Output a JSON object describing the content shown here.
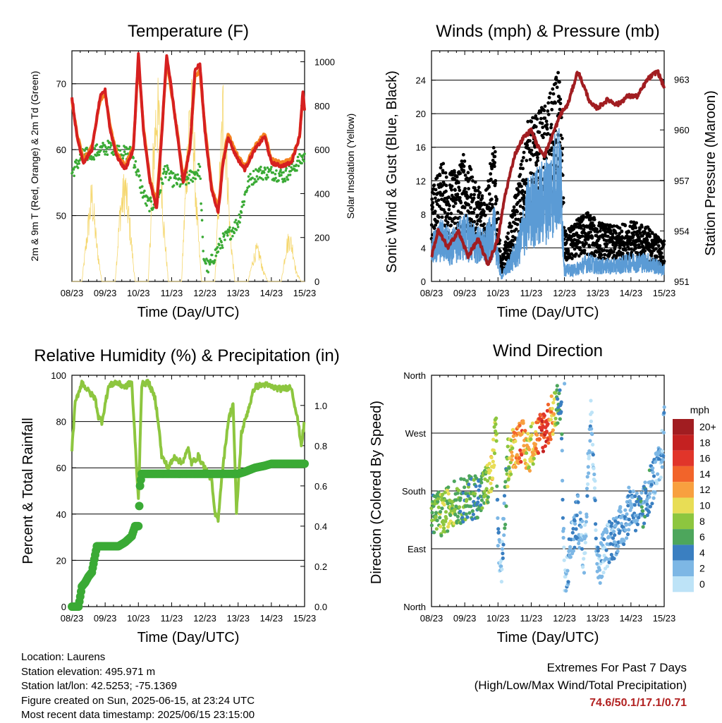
{
  "chart_data": [
    {
      "type": "line",
      "title": "Temperature (F)",
      "xlabel": "Time (Day/UTC)",
      "ylabel": "2m & 9m T (Red, Orange) & 2m Td (Green)",
      "ylabel_right": "Solar Insolation (Yellow)",
      "x_ticks": [
        "08/23",
        "09/23",
        "10/23",
        "11/23",
        "12/23",
        "13/23",
        "14/23",
        "15/23"
      ],
      "ylim": [
        40,
        75
      ],
      "y_ticks": [
        50,
        60,
        70
      ],
      "ylim_right": [
        0,
        1050
      ],
      "y_ticks_right": [
        0,
        200,
        400,
        600,
        800,
        1000
      ],
      "grid": "horizontal",
      "series": [
        {
          "name": "2m T",
          "color": "#d62020",
          "axis": "left",
          "x": [
            0,
            0.15,
            0.35,
            0.6,
            0.85,
            1.0,
            1.15,
            1.35,
            1.6,
            1.85,
            2.0,
            2.15,
            2.35,
            2.55,
            2.7,
            2.85,
            3.0,
            3.15,
            3.35,
            3.55,
            3.7,
            3.85,
            4.0,
            4.2,
            4.4,
            4.55,
            4.7,
            4.85,
            5.0,
            5.2,
            5.5,
            5.8,
            6.0,
            6.3,
            6.6,
            6.85,
            6.95,
            7.0
          ],
          "y": [
            68,
            62,
            58,
            60,
            68,
            69,
            63,
            59,
            57,
            60,
            74.5,
            63,
            55,
            51,
            62,
            74.5,
            69,
            63,
            55,
            60,
            72,
            73,
            63,
            54,
            50.5,
            58,
            62,
            60,
            58.5,
            57,
            60,
            62,
            58,
            57.5,
            58,
            62,
            69,
            66
          ]
        },
        {
          "name": "9m T",
          "color": "#f58220",
          "axis": "left",
          "x": [
            0,
            0.15,
            0.35,
            0.6,
            0.85,
            1.0,
            1.15,
            1.35,
            1.6,
            1.85,
            2.0,
            2.15,
            2.35,
            2.55,
            2.7,
            2.85,
            3.0,
            3.15,
            3.35,
            3.55,
            3.7,
            3.85,
            4.0,
            4.2,
            4.4,
            4.55,
            4.7,
            4.85,
            5.0,
            5.2,
            5.5,
            5.8,
            6.0,
            6.3,
            6.6,
            6.85,
            6.95,
            7.0
          ],
          "y": [
            67.5,
            62.5,
            58.5,
            60.5,
            67.5,
            68.5,
            63.5,
            59.5,
            57.5,
            60.5,
            73.5,
            63.5,
            55.5,
            52,
            62.5,
            73.5,
            68.5,
            63.5,
            55.5,
            60.5,
            71,
            72,
            63.5,
            54.5,
            51,
            58.5,
            62.5,
            60.5,
            59,
            57.5,
            60.5,
            62.5,
            58.5,
            58,
            58.5,
            62,
            68.5,
            66
          ]
        },
        {
          "name": "2m Td",
          "color": "#3aaa35",
          "axis": "left",
          "x": [
            0,
            0.3,
            0.6,
            0.9,
            1.2,
            1.5,
            1.8,
            2.0,
            2.1,
            2.25,
            2.4,
            2.6,
            2.8,
            3.0,
            3.3,
            3.6,
            3.85,
            3.95,
            4.1,
            4.3,
            4.5,
            4.7,
            4.85,
            5.0,
            5.3,
            5.6,
            6.0,
            6.4,
            6.8,
            7.0
          ],
          "y": [
            56.5,
            59,
            59.5,
            60,
            60.5,
            59.5,
            59.5,
            56,
            54,
            52,
            51.5,
            53,
            57,
            55.5,
            55,
            56,
            57,
            44,
            42,
            44,
            46,
            47,
            48,
            49,
            55,
            56.5,
            56.5,
            56,
            58,
            59
          ]
        },
        {
          "name": "Solar Insolation",
          "color": "#f5d76e",
          "axis": "right",
          "x": [
            0,
            0.3,
            0.45,
            0.6,
            0.75,
            0.9,
            1.3,
            1.45,
            1.6,
            1.75,
            1.9,
            2.3,
            2.45,
            2.55,
            2.65,
            2.75,
            2.9,
            3.3,
            3.45,
            3.55,
            3.65,
            3.75,
            3.9,
            4.3,
            4.45,
            4.55,
            4.65,
            4.75,
            4.9,
            5.3,
            5.45,
            5.55,
            5.65,
            5.75,
            5.9,
            6.3,
            6.45,
            6.55,
            6.65,
            6.75,
            6.9,
            7.0
          ],
          "y": [
            0,
            0,
            250,
            500,
            200,
            0,
            0,
            400,
            550,
            300,
            0,
            0,
            700,
            1000,
            850,
            350,
            0,
            0,
            650,
            1000,
            900,
            400,
            0,
            0,
            600,
            1000,
            750,
            300,
            0,
            0,
            120,
            180,
            150,
            60,
            0,
            0,
            200,
            250,
            180,
            50,
            0,
            0
          ]
        }
      ]
    },
    {
      "type": "scatter",
      "title": "Winds (mph) & Pressure (mb)",
      "xlabel": "Time (Day/UTC)",
      "ylabel": "Sonic Wind & Gust (Blue, Black)",
      "ylabel_right": "Station Pressure (Maroon)",
      "x_ticks": [
        "08/23",
        "09/23",
        "10/23",
        "11/23",
        "12/23",
        "13/23",
        "14/23",
        "15/23"
      ],
      "ylim": [
        0,
        27.5
      ],
      "y_ticks": [
        0,
        4,
        8,
        12,
        16,
        20,
        24
      ],
      "ylim_right": [
        951,
        964.7
      ],
      "y_ticks_right": [
        951,
        954,
        957,
        960,
        963
      ],
      "grid": "horizontal",
      "series": [
        {
          "name": "Sonic Wind",
          "color": "#5b9bd5",
          "x": [
            0,
            0.3,
            0.6,
            1.0,
            1.3,
            1.6,
            1.9,
            2.0,
            2.1,
            2.3,
            2.6,
            2.9,
            3.2,
            3.5,
            3.8,
            3.9,
            4.0,
            4.3,
            4.7,
            5.0,
            5.5,
            6.0,
            6.5,
            7.0
          ],
          "y": [
            4,
            5.5,
            4.5,
            6,
            5,
            4.5,
            6.5,
            3,
            0.5,
            2,
            4,
            9,
            10,
            11,
            14,
            12,
            1.5,
            1.5,
            2.5,
            2,
            2,
            2.5,
            2.5,
            1.5
          ]
        },
        {
          "name": "Sonic Gust",
          "color": "#000000",
          "x": [
            0,
            0.3,
            0.6,
            1.0,
            1.3,
            1.6,
            1.9,
            2.0,
            2.1,
            2.3,
            2.6,
            2.9,
            3.2,
            3.5,
            3.8,
            3.9,
            4.0,
            4.3,
            4.7,
            5.0,
            5.5,
            6.0,
            6.5,
            7.0
          ],
          "y": [
            9,
            12,
            11,
            13,
            10,
            9,
            14,
            7,
            2,
            5,
            10,
            16,
            17,
            18,
            21,
            19,
            5,
            6,
            7,
            6,
            5.5,
            6,
            5.5,
            4
          ]
        },
        {
          "name": "Station Pressure",
          "color": "#a11d21",
          "x": [
            0,
            0.2,
            0.5,
            0.8,
            1.1,
            1.4,
            1.7,
            2.0,
            2.2,
            2.5,
            2.75,
            3.0,
            3.2,
            3.4,
            3.7,
            3.9,
            4.1,
            4.4,
            4.6,
            4.8,
            5.0,
            5.3,
            5.6,
            5.9,
            6.2,
            6.5,
            6.8,
            7.0
          ],
          "y": [
            952.5,
            954,
            953,
            954,
            952.5,
            953.5,
            952,
            953.5,
            956,
            958.5,
            959.5,
            960,
            959,
            958.5,
            960,
            961,
            961.5,
            963.5,
            962.5,
            961.5,
            961.3,
            961.8,
            961.5,
            962,
            962,
            963,
            963.5,
            962.5
          ]
        }
      ]
    },
    {
      "type": "line",
      "title": "Relative Humidity (%) & Precipitation (in)",
      "xlabel": "Time (Day/UTC)",
      "ylabel": "Percent & Total Rainfall",
      "x_ticks": [
        "08/23",
        "09/23",
        "10/23",
        "11/23",
        "12/23",
        "13/23",
        "14/23",
        "15/23"
      ],
      "ylim": [
        0,
        100
      ],
      "y_ticks": [
        0,
        20,
        40,
        60,
        80,
        100
      ],
      "ylim_right": [
        0,
        1.15
      ],
      "y_ticks_right": [
        0.0,
        0.2,
        0.4,
        0.6,
        0.8,
        1.0
      ],
      "grid": "horizontal",
      "series": [
        {
          "name": "Relative Humidity",
          "color": "#8dc63f",
          "axis": "left",
          "x": [
            0,
            0.1,
            0.3,
            0.5,
            0.7,
            0.8,
            0.9,
            1.1,
            1.3,
            1.6,
            1.8,
            2.0,
            2.1,
            2.3,
            2.5,
            2.6,
            2.7,
            2.9,
            3.1,
            3.3,
            3.5,
            3.6,
            3.8,
            4.0,
            4.2,
            4.3,
            4.4,
            4.5,
            4.7,
            4.85,
            4.95,
            5.1,
            5.3,
            5.5,
            5.8,
            6.0,
            6.3,
            6.6,
            6.8,
            6.9,
            7.0
          ],
          "y": [
            68,
            88,
            97,
            93,
            90,
            82,
            80,
            95,
            97,
            95,
            97,
            46,
            96,
            97,
            90,
            80,
            65,
            60,
            65,
            62,
            68,
            62,
            65,
            60,
            55,
            40,
            38,
            55,
            80,
            88,
            40,
            75,
            85,
            95,
            96,
            95,
            94,
            95,
            80,
            70,
            80
          ]
        },
        {
          "name": "Total Rainfall",
          "color": "#3aaa35",
          "axis": "right",
          "x": [
            0,
            0.2,
            0.3,
            0.4,
            0.5,
            0.6,
            0.75,
            0.8,
            1.0,
            1.2,
            1.4,
            1.6,
            1.8,
            1.9,
            2.0,
            2.05,
            2.1,
            2.5,
            3.0,
            3.5,
            4.0,
            4.5,
            5.0,
            5.2,
            5.5,
            5.8,
            6.0,
            6.5,
            7.0
          ],
          "y": [
            0,
            0,
            0.1,
            0.12,
            0.15,
            0.17,
            0.3,
            0.3,
            0.3,
            0.3,
            0.3,
            0.32,
            0.35,
            0.4,
            0.4,
            0.6,
            0.66,
            0.66,
            0.66,
            0.66,
            0.66,
            0.66,
            0.66,
            0.67,
            0.69,
            0.7,
            0.71,
            0.71,
            0.71
          ]
        }
      ]
    },
    {
      "type": "scatter",
      "title": "Wind Direction",
      "xlabel": "Time (Day/UTC)",
      "ylabel": "Direction (Colored By Speed)",
      "x_ticks": [
        "08/23",
        "09/23",
        "10/23",
        "11/23",
        "12/23",
        "13/23",
        "14/23",
        "15/23"
      ],
      "y_ticks": [
        "North",
        "East",
        "South",
        "West",
        "North"
      ],
      "ylim": [
        0,
        360
      ],
      "grid": "horizontal",
      "colorbar": {
        "title": "mph",
        "labels": [
          "20+",
          "18",
          "16",
          "14",
          "12",
          "10",
          "8",
          "6",
          "4",
          "2",
          "0"
        ],
        "colors": [
          "#a11d21",
          "#c42121",
          "#e1352a",
          "#f2642a",
          "#f8a03f",
          "#e8dd55",
          "#8dc63f",
          "#4da65c",
          "#3a7fc1",
          "#7db7e5",
          "#bde3f7"
        ]
      },
      "series": [
        {
          "name": "Wind Direction",
          "x": [
            0,
            0.3,
            0.6,
            0.9,
            1.2,
            1.5,
            1.8,
            1.95,
            2.0,
            2.1,
            2.3,
            2.5,
            2.7,
            2.9,
            3.1,
            3.3,
            3.5,
            3.7,
            3.8,
            3.9,
            4.0,
            4.2,
            4.4,
            4.6,
            4.8,
            5.0,
            5.2,
            5.5,
            5.8,
            6.0,
            6.3,
            6.6,
            6.9,
            7.0
          ],
          "y": [
            150,
            140,
            160,
            165,
            170,
            175,
            200,
            280,
            90,
            60,
            230,
            250,
            260,
            240,
            260,
            270,
            285,
            300,
            320,
            310,
            20,
            100,
            140,
            80,
            320,
            60,
            90,
            110,
            130,
            160,
            140,
            190,
            220,
            280
          ],
          "speed": [
            6,
            8,
            8,
            6,
            6,
            5,
            10,
            8,
            2,
            1,
            8,
            12,
            14,
            10,
            10,
            16,
            15,
            10,
            6,
            4,
            1,
            2,
            3,
            1,
            2,
            2,
            2,
            3,
            3,
            3,
            4,
            3,
            2,
            2
          ]
        }
      ]
    }
  ],
  "info": {
    "location": "Location: Laurens",
    "elevation": "Station elevation: 495.971 m",
    "latlon": "Station lat/lon: 42.5253; -75.1369",
    "created": "Figure created on Sun, 2025-06-15, at 23:24 UTC",
    "recent": "Most recent data timestamp: 2025/06/15 23:15:00"
  },
  "extremes": {
    "title": "Extremes For Past 7 Days",
    "subtitle": "(High/Low/Max Wind/Total Precipitation)",
    "values": "74.6/50.1/17.1/0.71"
  }
}
